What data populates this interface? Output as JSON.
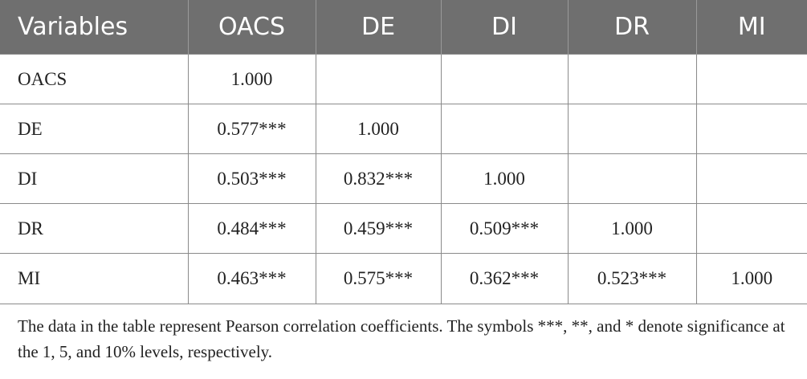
{
  "table": {
    "headers": [
      "Variables",
      "OACS",
      "DE",
      "DI",
      "DR",
      "MI"
    ],
    "rows": [
      [
        "OACS",
        "1.000",
        "",
        "",
        "",
        ""
      ],
      [
        "DE",
        "0.577***",
        "1.000",
        "",
        "",
        ""
      ],
      [
        "DI",
        "0.503***",
        "0.832***",
        "1.000",
        "",
        ""
      ],
      [
        "DR",
        "0.484***",
        "0.459***",
        "0.509***",
        "1.000",
        ""
      ],
      [
        "MI",
        "0.463***",
        "0.575***",
        "0.362***",
        "0.523***",
        "1.000"
      ]
    ]
  },
  "note": "The data in the table represent Pearson correlation coefficients. The symbols ***, **, and * denote significance at the 1, 5, and 10% levels, respectively."
}
